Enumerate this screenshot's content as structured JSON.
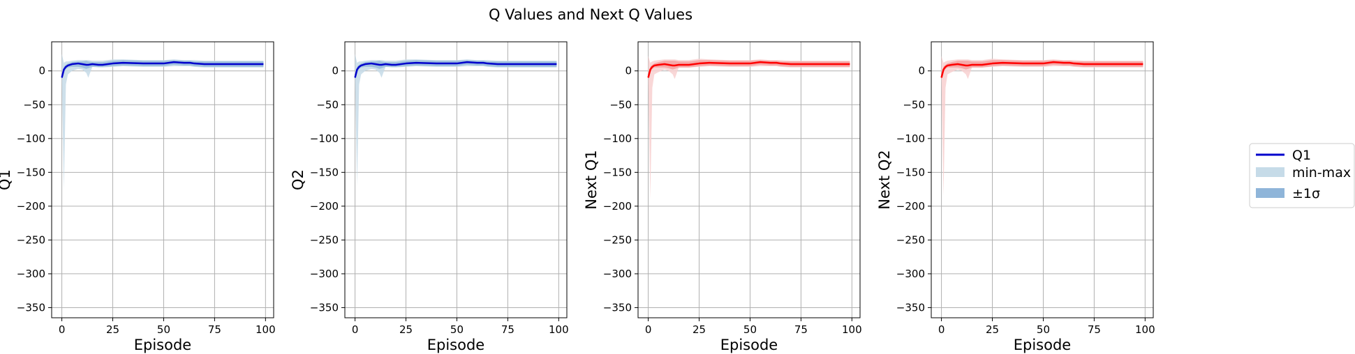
{
  "figure": {
    "title": "Q Values and Next Q Values"
  },
  "legend": {
    "items": [
      {
        "label": "Q1",
        "kind": "line",
        "color": "#0000cc"
      },
      {
        "label": "min-max",
        "kind": "patch",
        "color": "#c6dbe8"
      },
      {
        "label": "±1σ",
        "kind": "patch",
        "color": "#8fb5d9"
      }
    ]
  },
  "chart_data": [
    {
      "type": "line",
      "xlabel": "Episode",
      "ylabel": "Q1",
      "xlim": [
        -5,
        104
      ],
      "ylim": [
        -365,
        43
      ],
      "xticks": [
        0,
        25,
        50,
        75,
        100
      ],
      "yticks": [
        0,
        -50,
        -100,
        -150,
        -200,
        -250,
        -300,
        -350
      ],
      "grid": true,
      "colors": {
        "line": "#0000cc",
        "minmax": "#c6dbe8",
        "std": "#8fb5d9"
      },
      "series": [
        {
          "x": [
            0,
            1,
            2,
            3,
            5,
            8,
            10,
            12,
            13,
            15,
            18,
            20,
            25,
            30,
            40,
            50,
            55,
            60,
            63,
            65,
            70,
            75,
            80,
            90,
            99
          ],
          "mean": [
            -10,
            2,
            6,
            8,
            10,
            11,
            10,
            9,
            9,
            10,
            9,
            9,
            11,
            12,
            11,
            11,
            13,
            12,
            12,
            11,
            10,
            10,
            10,
            10,
            10
          ],
          "std_lo": [
            -12,
            -2,
            3,
            5,
            6,
            6,
            5,
            3,
            4,
            6,
            6,
            6,
            7,
            8,
            7,
            7,
            9,
            8,
            8,
            7,
            6,
            6,
            6,
            6,
            6
          ],
          "std_hi": [
            -8,
            6,
            9,
            11,
            13,
            14,
            14,
            15,
            14,
            13,
            13,
            13,
            15,
            16,
            15,
            15,
            16,
            15,
            15,
            14,
            14,
            14,
            14,
            14,
            14
          ],
          "min": [
            -10,
            -175,
            -20,
            -5,
            0,
            3,
            2,
            -3,
            -10,
            6,
            5,
            5,
            6,
            7,
            6,
            6,
            7,
            7,
            7,
            6,
            5,
            5,
            5,
            5,
            5
          ],
          "max": [
            25,
            12,
            14,
            14,
            15,
            16,
            16,
            16,
            16,
            15,
            15,
            15,
            17,
            17,
            16,
            16,
            17,
            16,
            16,
            16,
            15,
            15,
            15,
            15,
            15
          ]
        }
      ]
    },
    {
      "type": "line",
      "xlabel": "Episode",
      "ylabel": "Q2",
      "xlim": [
        -5,
        104
      ],
      "ylim": [
        -365,
        43
      ],
      "xticks": [
        0,
        25,
        50,
        75,
        100
      ],
      "yticks": [
        0,
        -50,
        -100,
        -150,
        -200,
        -250,
        -300,
        -350
      ],
      "grid": true,
      "colors": {
        "line": "#0000cc",
        "minmax": "#c6dbe8",
        "std": "#8fb5d9"
      },
      "series": [
        {
          "x": [
            0,
            1,
            2,
            3,
            5,
            8,
            10,
            12,
            13,
            15,
            18,
            20,
            25,
            30,
            40,
            50,
            55,
            60,
            63,
            65,
            70,
            75,
            80,
            90,
            99
          ],
          "mean": [
            -10,
            2,
            6,
            8,
            10,
            11,
            10,
            9,
            9,
            10,
            9,
            9,
            11,
            12,
            11,
            11,
            13,
            12,
            12,
            11,
            10,
            10,
            10,
            10,
            10
          ],
          "std_lo": [
            -12,
            -2,
            3,
            5,
            6,
            6,
            5,
            3,
            4,
            6,
            6,
            6,
            7,
            8,
            7,
            7,
            9,
            8,
            8,
            7,
            6,
            6,
            6,
            6,
            6
          ],
          "std_hi": [
            -8,
            6,
            9,
            11,
            13,
            14,
            14,
            15,
            14,
            13,
            13,
            13,
            15,
            16,
            15,
            15,
            16,
            15,
            15,
            14,
            14,
            14,
            14,
            14,
            14
          ],
          "min": [
            -10,
            -170,
            -20,
            -5,
            0,
            3,
            2,
            -3,
            -10,
            6,
            5,
            5,
            6,
            7,
            6,
            6,
            7,
            7,
            7,
            6,
            5,
            5,
            5,
            5,
            5
          ],
          "max": [
            25,
            12,
            14,
            14,
            15,
            16,
            16,
            16,
            16,
            15,
            15,
            15,
            17,
            17,
            16,
            16,
            17,
            16,
            16,
            16,
            15,
            15,
            15,
            15,
            15
          ]
        }
      ]
    },
    {
      "type": "line",
      "xlabel": "Episode",
      "ylabel": "Next Q1",
      "xlim": [
        -5,
        104
      ],
      "ylim": [
        -365,
        43
      ],
      "xticks": [
        0,
        25,
        50,
        75,
        100
      ],
      "yticks": [
        0,
        -50,
        -100,
        -150,
        -200,
        -250,
        -300,
        -350
      ],
      "grid": true,
      "colors": {
        "line": "#ff0000",
        "minmax": "#f8d0d0",
        "std": "#f39a9a"
      },
      "series": [
        {
          "x": [
            0,
            1,
            2,
            3,
            5,
            8,
            10,
            12,
            13,
            15,
            18,
            20,
            25,
            30,
            40,
            50,
            55,
            60,
            63,
            65,
            70,
            75,
            80,
            90,
            99
          ],
          "mean": [
            -10,
            2,
            6,
            8,
            9,
            10,
            9,
            8,
            8,
            9,
            9,
            9,
            11,
            12,
            11,
            11,
            13,
            12,
            12,
            11,
            10,
            10,
            10,
            10,
            10
          ],
          "std_lo": [
            -12,
            -2,
            3,
            5,
            5,
            5,
            4,
            2,
            3,
            5,
            5,
            5,
            7,
            8,
            7,
            7,
            9,
            8,
            8,
            7,
            6,
            6,
            6,
            6,
            6
          ],
          "std_hi": [
            -8,
            6,
            9,
            11,
            13,
            15,
            15,
            15,
            15,
            14,
            14,
            14,
            16,
            16,
            15,
            15,
            16,
            15,
            15,
            14,
            14,
            14,
            14,
            14,
            14
          ],
          "min": [
            -10,
            -190,
            -25,
            -5,
            -2,
            2,
            0,
            -5,
            -12,
            5,
            5,
            5,
            6,
            7,
            6,
            6,
            7,
            7,
            7,
            6,
            5,
            5,
            5,
            5,
            5
          ],
          "max": [
            22,
            12,
            14,
            15,
            16,
            17,
            17,
            17,
            17,
            16,
            16,
            16,
            18,
            17,
            16,
            16,
            17,
            16,
            16,
            16,
            15,
            15,
            15,
            15,
            15
          ]
        }
      ]
    },
    {
      "type": "line",
      "xlabel": "Episode",
      "ylabel": "Next Q2",
      "xlim": [
        -5,
        104
      ],
      "ylim": [
        -365,
        43
      ],
      "xticks": [
        0,
        25,
        50,
        75,
        100
      ],
      "yticks": [
        0,
        -50,
        -100,
        -150,
        -200,
        -250,
        -300,
        -350
      ],
      "grid": true,
      "colors": {
        "line": "#ff0000",
        "minmax": "#f8d0d0",
        "std": "#f39a9a"
      },
      "series": [
        {
          "x": [
            0,
            1,
            2,
            3,
            5,
            8,
            10,
            12,
            13,
            15,
            18,
            20,
            25,
            30,
            40,
            50,
            55,
            60,
            63,
            65,
            70,
            75,
            80,
            90,
            99
          ],
          "mean": [
            -10,
            2,
            6,
            8,
            9,
            10,
            9,
            8,
            8,
            9,
            9,
            9,
            11,
            12,
            11,
            11,
            13,
            12,
            12,
            11,
            10,
            10,
            10,
            10,
            10
          ],
          "std_lo": [
            -12,
            -2,
            3,
            5,
            5,
            5,
            4,
            2,
            3,
            5,
            5,
            5,
            7,
            8,
            7,
            7,
            9,
            8,
            8,
            7,
            6,
            6,
            6,
            6,
            6
          ],
          "std_hi": [
            -8,
            6,
            9,
            11,
            13,
            15,
            15,
            15,
            15,
            14,
            14,
            14,
            16,
            16,
            15,
            15,
            16,
            15,
            15,
            14,
            14,
            14,
            14,
            14,
            14
          ],
          "min": [
            -10,
            -185,
            -25,
            -5,
            -2,
            2,
            0,
            -5,
            -12,
            5,
            5,
            5,
            6,
            7,
            6,
            6,
            7,
            7,
            7,
            6,
            5,
            5,
            5,
            5,
            5
          ],
          "max": [
            22,
            12,
            14,
            15,
            16,
            17,
            17,
            17,
            17,
            16,
            16,
            16,
            18,
            17,
            16,
            16,
            17,
            16,
            16,
            16,
            15,
            15,
            15,
            15,
            15
          ]
        }
      ]
    }
  ]
}
